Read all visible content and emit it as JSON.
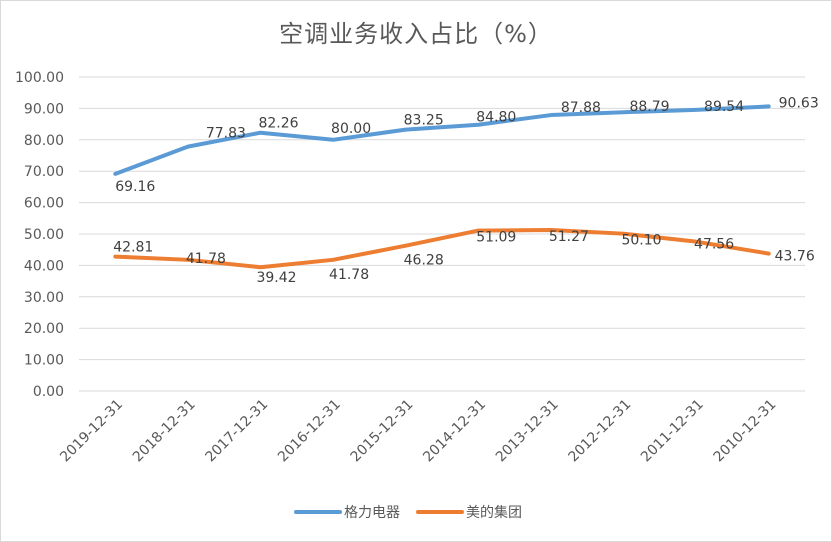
{
  "chart_data": {
    "type": "line",
    "title": "空调业务收入占比（%）",
    "categories": [
      "2019-12-31",
      "2018-12-31",
      "2017-12-31",
      "2016-12-31",
      "2015-12-31",
      "2014-12-31",
      "2013-12-31",
      "2012-12-31",
      "2011-12-31",
      "2010-12-31"
    ],
    "ylim": [
      0,
      100
    ],
    "yticks": [
      "0.00",
      "10.00",
      "20.00",
      "30.00",
      "40.00",
      "50.00",
      "60.00",
      "70.00",
      "80.00",
      "90.00",
      "100.00"
    ],
    "grid": true,
    "legend_position": "bottom",
    "series": [
      {
        "name": "格力电器",
        "color": "#5b9bd5",
        "values": [
          69.16,
          77.83,
          82.26,
          80.0,
          83.25,
          84.8,
          87.88,
          88.79,
          89.54,
          90.63
        ],
        "labels": [
          "69.16",
          "77.83",
          "82.26",
          "80.00",
          "83.25",
          "84.80",
          "87.88",
          "88.79",
          "89.54",
          "90.63"
        ]
      },
      {
        "name": "美的集团",
        "color": "#ed7d31",
        "values": [
          42.81,
          41.78,
          39.42,
          41.78,
          46.28,
          51.09,
          51.27,
          50.1,
          47.56,
          43.76
        ],
        "labels": [
          "42.81",
          "41.78",
          "39.42",
          "41.78",
          "46.28",
          "51.09",
          "51.27",
          "50.10",
          "47.56",
          "43.76"
        ]
      }
    ]
  }
}
